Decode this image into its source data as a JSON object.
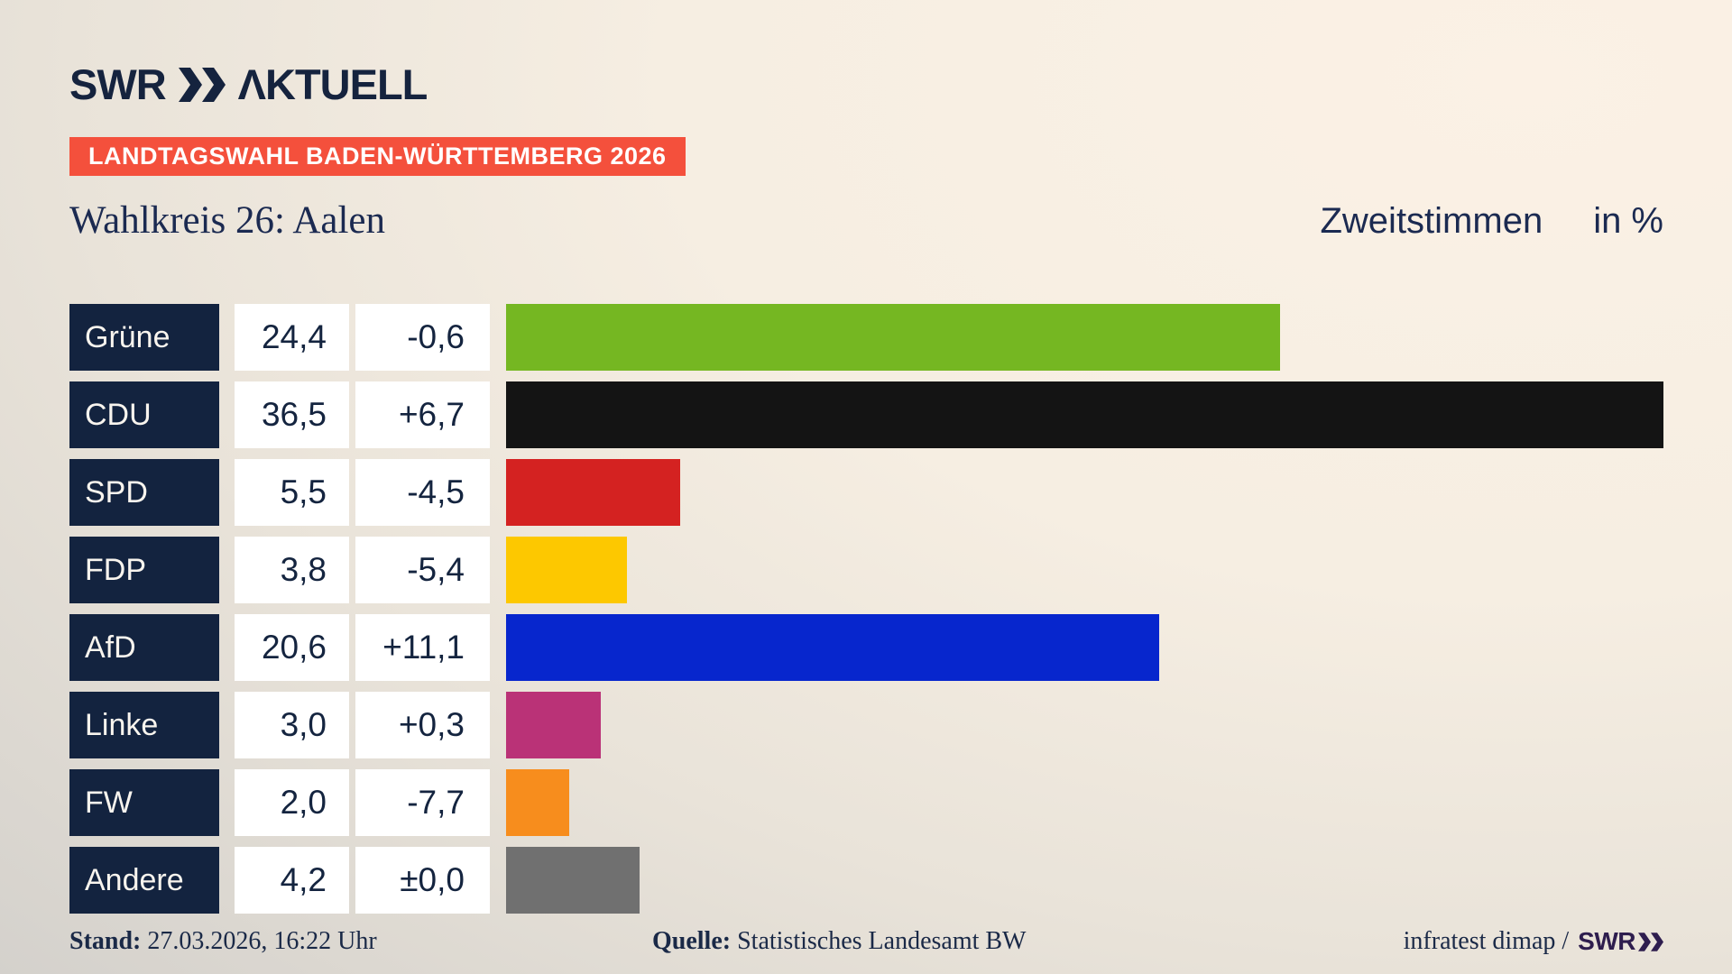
{
  "header": {
    "logo_brand": "SWR",
    "logo_suffix": "ΛKTUELL",
    "banner": "LANDTAGSWAHL BADEN-WÜRTTEMBERG 2026",
    "title": "Wahlkreis 26: Aalen",
    "subtitle": "Zweitstimmen",
    "unit": "in %"
  },
  "chart_data": {
    "type": "bar",
    "orientation": "horizontal",
    "title": "Wahlkreis 26: Aalen",
    "subtitle": "Zweitstimmen in %",
    "value_axis_max": 36.5,
    "unit": "%",
    "categories": [
      "Grüne",
      "CDU",
      "SPD",
      "FDP",
      "AfD",
      "Linke",
      "FW",
      "Andere"
    ],
    "values": [
      24.4,
      36.5,
      5.5,
      3.8,
      20.6,
      3.0,
      2.0,
      4.2
    ],
    "changes": [
      -0.6,
      6.7,
      -4.5,
      -5.4,
      11.1,
      0.3,
      -7.7,
      0.0
    ],
    "parties": [
      {
        "label": "Grüne",
        "value": 24.4,
        "value_label": "24,4",
        "change_label": "-0,6",
        "color": "#75b722"
      },
      {
        "label": "CDU",
        "value": 36.5,
        "value_label": "36,5",
        "change_label": "+6,7",
        "color": "#141414"
      },
      {
        "label": "SPD",
        "value": 5.5,
        "value_label": "5,5",
        "change_label": "-4,5",
        "color": "#d42221"
      },
      {
        "label": "FDP",
        "value": 3.8,
        "value_label": "3,8",
        "change_label": "-5,4",
        "color": "#fdc800"
      },
      {
        "label": "AfD",
        "value": 20.6,
        "value_label": "20,6",
        "change_label": "+11,1",
        "color": "#0726cd"
      },
      {
        "label": "Linke",
        "value": 3.0,
        "value_label": "3,0",
        "change_label": "+0,3",
        "color": "#ba3277"
      },
      {
        "label": "FW",
        "value": 2.0,
        "value_label": "2,0",
        "change_label": "-7,7",
        "color": "#f78d1d"
      },
      {
        "label": "Andere",
        "value": 4.2,
        "value_label": "4,2",
        "change_label": "±0,0",
        "color": "#707070"
      }
    ]
  },
  "footer": {
    "stand_label": "Stand:",
    "stand_value": "27.03.2026, 16:22 Uhr",
    "quelle_label": "Quelle:",
    "quelle_value": "Statistisches Landesamt BW",
    "credit": "infratest dimap /",
    "credit_brand": "SWR"
  },
  "colors": {
    "banner_bg": "#f4503c",
    "label_box_bg": "#13233f",
    "text_navy": "#1b2a51",
    "footer_brand": "#2e1d4e",
    "background_top": "#fbf1e5",
    "background_bottom": "#d4d1cc"
  }
}
